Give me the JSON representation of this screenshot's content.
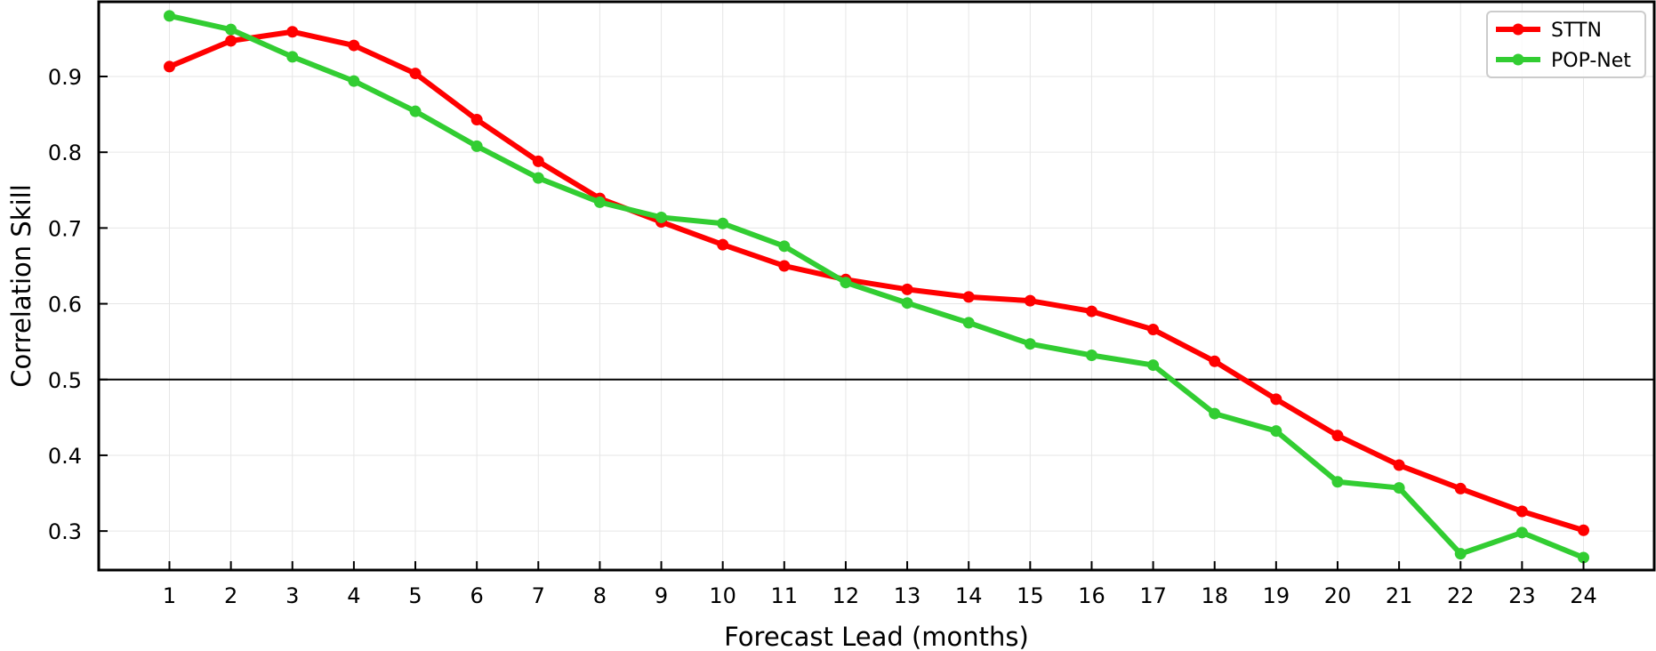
{
  "chart_data": {
    "type": "line",
    "title": "",
    "xlabel": "Forecast Lead (months)",
    "ylabel": "Correlation Skill",
    "x": [
      1,
      2,
      3,
      4,
      5,
      6,
      7,
      8,
      9,
      10,
      11,
      12,
      13,
      14,
      15,
      16,
      17,
      18,
      19,
      20,
      21,
      22,
      23,
      24
    ],
    "xticks": [
      "1",
      "2",
      "3",
      "4",
      "5",
      "6",
      "7",
      "8",
      "9",
      "10",
      "11",
      "12",
      "13",
      "14",
      "15",
      "16",
      "17",
      "18",
      "19",
      "20",
      "21",
      "22",
      "23",
      "24"
    ],
    "xlim": [
      -0.15,
      25.15
    ],
    "ylim": [
      0.2485,
      0.9986
    ],
    "yticks": [
      0.3,
      0.4,
      0.5,
      0.6,
      0.7,
      0.8,
      0.9
    ],
    "ytick_labels": [
      "0.3",
      "0.4",
      "0.5",
      "0.6",
      "0.7",
      "0.8",
      "0.9"
    ],
    "reference_line_y": 0.5,
    "grid": true,
    "legend_position": "top-right",
    "series": [
      {
        "name": "STTN",
        "color": "#ff0000",
        "values": [
          0.913,
          0.947,
          0.959,
          0.941,
          0.904,
          0.843,
          0.788,
          0.739,
          0.708,
          0.678,
          0.65,
          0.632,
          0.619,
          0.609,
          0.604,
          0.59,
          0.566,
          0.524,
          0.474,
          0.426,
          0.387,
          0.356,
          0.326,
          0.301
        ]
      },
      {
        "name": "POP-Net",
        "color": "#32cd32",
        "values": [
          0.98,
          0.962,
          0.926,
          0.894,
          0.854,
          0.808,
          0.766,
          0.734,
          0.714,
          0.706,
          0.676,
          0.628,
          0.601,
          0.575,
          0.547,
          0.532,
          0.519,
          0.455,
          0.432,
          0.365,
          0.357,
          0.27,
          0.298,
          0.265
        ]
      }
    ]
  }
}
